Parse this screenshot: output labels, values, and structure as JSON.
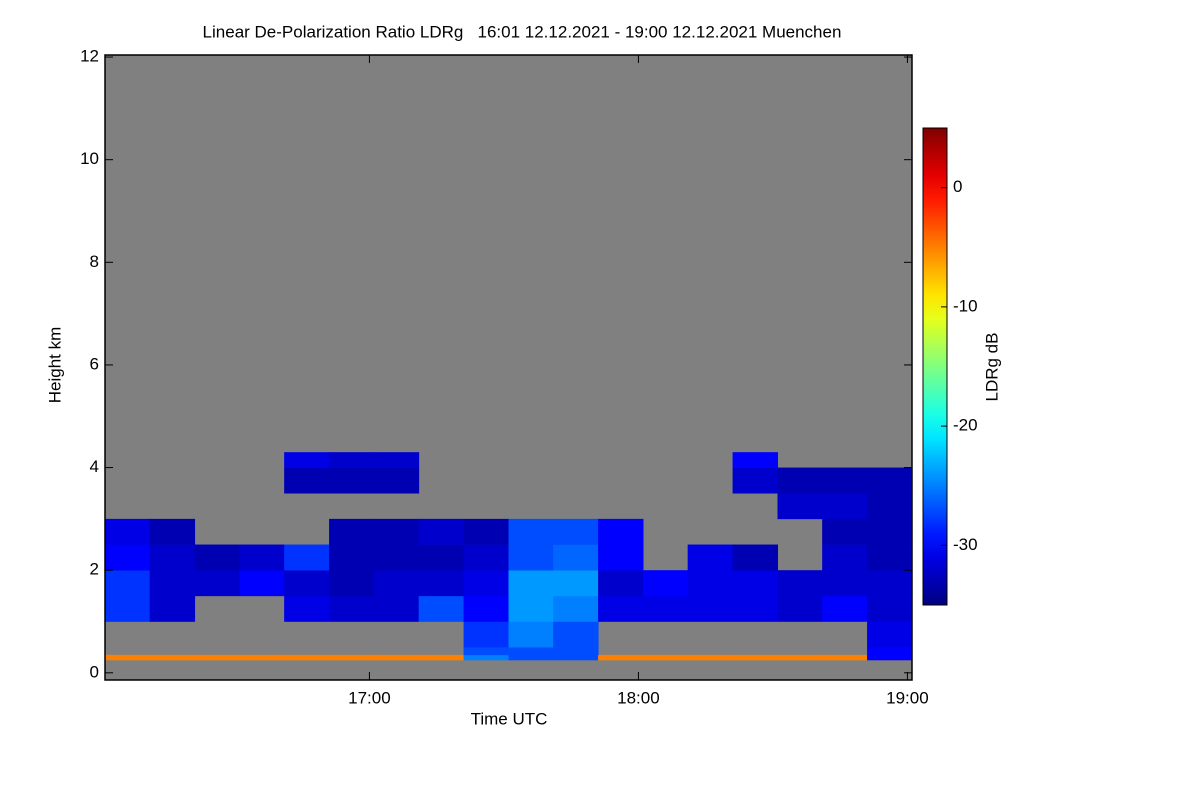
{
  "chart_data": {
    "type": "heatmap",
    "title": "Linear De-Polarization Ratio LDRg   16:01 12.12.2021 - 19:00 12.12.2021 Muenchen",
    "xlabel": "Time UTC",
    "ylabel": "Height km",
    "colorbar_label": "LDRg dB",
    "colormap": "jet",
    "xlim": [
      16.017,
      19.017
    ],
    "ylim": [
      -0.14,
      12.04
    ],
    "xticks": [
      {
        "value": 17,
        "label": "17:00"
      },
      {
        "value": 18,
        "label": "18:00"
      },
      {
        "value": 19,
        "label": "19:00"
      }
    ],
    "yticks": [
      0,
      2,
      4,
      6,
      8,
      10,
      12
    ],
    "zlim": [
      -35,
      5
    ],
    "zticks": [
      0,
      -10,
      -20,
      -30
    ],
    "x_edges": [
      16.017,
      16.183,
      16.35,
      16.517,
      16.683,
      16.85,
      17.017,
      17.183,
      17.35,
      17.517,
      17.683,
      17.85,
      18.017,
      18.183,
      18.35,
      18.517,
      18.683,
      18.85,
      19.017
    ],
    "y_edges": [
      0.25,
      0.35,
      0.5,
      1,
      1.5,
      2,
      2.5,
      3,
      3.5,
      4,
      4.3
    ],
    "z": [
      [
        -5,
        -5,
        -5,
        -5,
        -5,
        -5,
        -5,
        -5,
        -25,
        -27,
        -27,
        -5,
        -5,
        -5,
        -5,
        -5,
        -5,
        -30
      ],
      [
        null,
        null,
        null,
        null,
        null,
        null,
        null,
        null,
        -27,
        -27,
        -27,
        null,
        null,
        null,
        null,
        null,
        null,
        -30
      ],
      [
        null,
        null,
        null,
        null,
        null,
        null,
        null,
        null,
        -28,
        -25,
        -27,
        null,
        null,
        null,
        null,
        null,
        null,
        -31
      ],
      [
        -28,
        -32,
        null,
        null,
        -31,
        -32,
        -32,
        -27,
        -30,
        -24,
        -25,
        -31,
        -31,
        -31,
        -31,
        -32,
        -30,
        -32
      ],
      [
        -28,
        -32,
        -32,
        -30,
        -32,
        -33,
        -32,
        -32,
        -31,
        -24,
        -24,
        -32,
        -30,
        -31,
        -31,
        -32,
        -32,
        -32
      ],
      [
        -30,
        -32,
        -33,
        -32,
        -28,
        -33,
        -33,
        -33,
        -32,
        -27,
        -26,
        -30,
        null,
        -31,
        -33,
        null,
        -32,
        -33
      ],
      [
        -31,
        -33,
        null,
        null,
        null,
        -33,
        -33,
        -32,
        -33,
        -27,
        -27,
        -30,
        null,
        null,
        null,
        null,
        -33,
        -33
      ],
      [
        null,
        null,
        null,
        null,
        null,
        null,
        null,
        null,
        null,
        null,
        null,
        null,
        null,
        null,
        null,
        -32,
        -32,
        -33
      ],
      [
        null,
        null,
        null,
        null,
        -33,
        -33,
        -33,
        null,
        null,
        null,
        null,
        null,
        null,
        null,
        -32,
        -33,
        -33,
        -33
      ],
      [
        null,
        null,
        null,
        null,
        -31,
        -32,
        -32,
        null,
        null,
        null,
        null,
        null,
        null,
        null,
        -30,
        null,
        null,
        null
      ]
    ]
  }
}
